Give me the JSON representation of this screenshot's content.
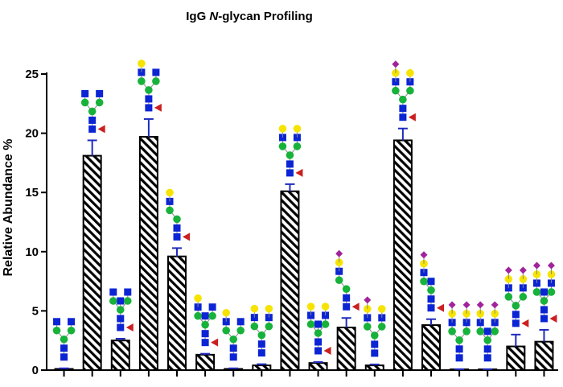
{
  "chart_data": {
    "type": "bar",
    "title_pre": "IgG ",
    "title_italic": "N",
    "title_post": "-glycan Profiling",
    "ylabel": "Relative  Abundance %",
    "xlabel": "",
    "ylim": [
      0,
      25
    ],
    "yticks": [
      0,
      5,
      10,
      15,
      20,
      25
    ],
    "grid": false,
    "bar_pattern": "diagonal-hatch",
    "colors": {
      "bar_edge": "#000000",
      "hatch": "#000000",
      "error_bar": "#1f2bbf",
      "glcnac": "#0b24d4",
      "mannose": "#17b23a",
      "galactose": "#f6e400",
      "fucose": "#cc1f1f",
      "sialic_acid": "#a0239c"
    },
    "values": [
      0.1,
      18.1,
      2.5,
      19.7,
      9.6,
      1.3,
      0.1,
      0.4,
      15.1,
      0.6,
      3.6,
      0.4,
      19.4,
      3.8,
      0.05,
      0.05,
      2.0,
      2.4
    ],
    "errors": [
      0.05,
      1.3,
      0.15,
      1.5,
      0.7,
      0.08,
      0.05,
      0.1,
      0.6,
      0.08,
      0.8,
      0.08,
      1.0,
      0.5,
      0.03,
      0.03,
      1.0,
      1.0
    ],
    "glycans": [
      {
        "fuc": false,
        "gal": 0,
        "sia": 0,
        "bis": false,
        "arms": 2
      },
      {
        "fuc": true,
        "gal": 0,
        "sia": 0,
        "bis": false,
        "arms": 2
      },
      {
        "fuc": true,
        "gal": 0,
        "sia": 0,
        "bis": true,
        "arms": 2
      },
      {
        "fuc": true,
        "gal": 1,
        "sia": 0,
        "bis": false,
        "arms": 2
      },
      {
        "fuc": true,
        "gal": 1,
        "sia": 0,
        "bis": false,
        "arms": 1
      },
      {
        "fuc": true,
        "gal": 1,
        "sia": 0,
        "bis": true,
        "arms": 2
      },
      {
        "fuc": false,
        "gal": 1,
        "sia": 0,
        "bis": false,
        "arms": 2
      },
      {
        "fuc": false,
        "gal": 2,
        "sia": 0,
        "bis": false,
        "arms": 2
      },
      {
        "fuc": true,
        "gal": 2,
        "sia": 0,
        "bis": false,
        "arms": 2
      },
      {
        "fuc": true,
        "gal": 2,
        "sia": 0,
        "bis": true,
        "arms": 2
      },
      {
        "fuc": true,
        "gal": 1,
        "sia": 1,
        "bis": false,
        "arms": 1
      },
      {
        "fuc": false,
        "gal": 2,
        "sia": 1,
        "bis": false,
        "arms": 2
      },
      {
        "fuc": true,
        "gal": 2,
        "sia": 1,
        "bis": false,
        "arms": 2
      },
      {
        "fuc": true,
        "gal": 1,
        "sia": 1,
        "bis": true,
        "arms": 1
      },
      {
        "fuc": false,
        "gal": 2,
        "sia": 2,
        "bis": false,
        "arms": 2
      },
      {
        "fuc": false,
        "gal": 2,
        "sia": 2,
        "bis": true,
        "arms": 2
      },
      {
        "fuc": true,
        "gal": 2,
        "sia": 2,
        "bis": false,
        "arms": 2
      },
      {
        "fuc": true,
        "gal": 2,
        "sia": 2,
        "bis": true,
        "arms": 2
      }
    ]
  }
}
